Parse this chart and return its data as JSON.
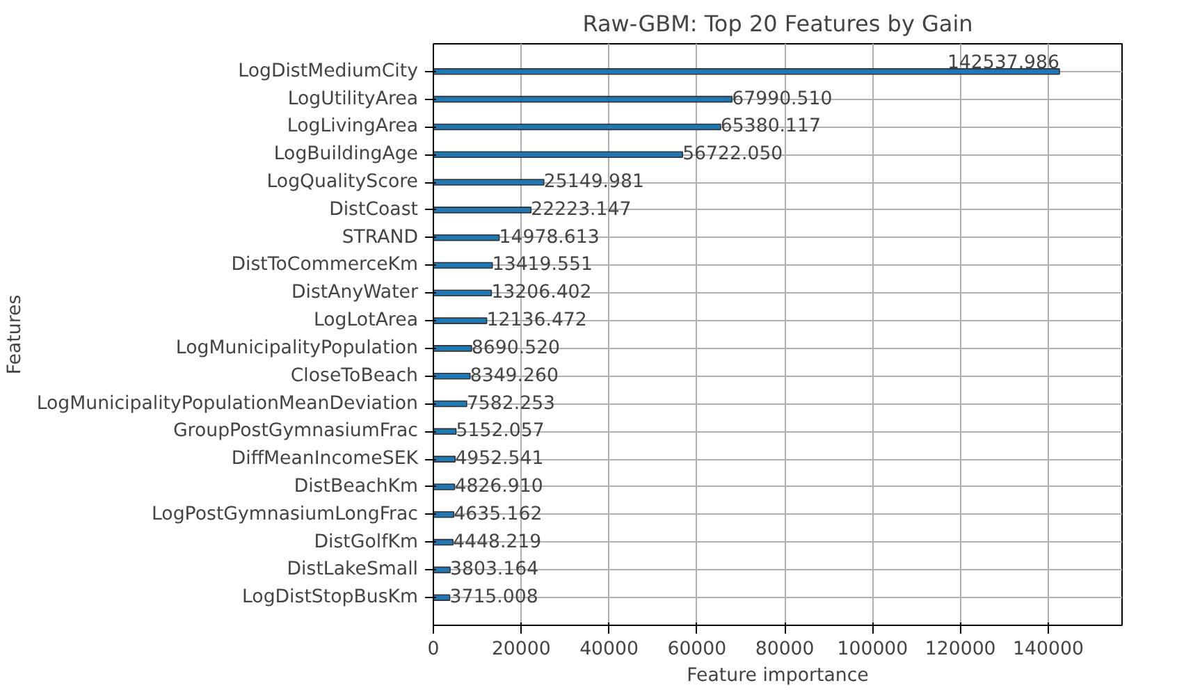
{
  "chart_data": {
    "type": "bar",
    "orientation": "horizontal",
    "title": "Raw-GBM: Top 20 Features by Gain",
    "xlabel": "Feature importance",
    "ylabel": "Features",
    "categories": [
      "LogDistMediumCity",
      "LogUtilityArea",
      "LogLivingArea",
      "LogBuildingAge",
      "LogQualityScore",
      "DistCoast",
      "STRAND",
      "DistToCommerceKm",
      "DistAnyWater",
      "LogLotArea",
      "LogMunicipalityPopulation",
      "CloseToBeach",
      "LogMunicipalityPopulationMeanDeviation",
      "GroupPostGymnasiumFrac",
      "DiffMeanIncomeSEK",
      "DistBeachKm",
      "LogPostGymnasiumLongFrac",
      "DistGolfKm",
      "DistLakeSmall",
      "LogDistStopBusKm"
    ],
    "values": [
      142537.986,
      67990.51,
      65380.117,
      56722.05,
      25149.981,
      22223.147,
      14978.613,
      13419.551,
      13206.402,
      12136.472,
      8690.52,
      8349.26,
      7582.253,
      5152.057,
      4952.541,
      4826.91,
      4635.162,
      4448.219,
      3803.164,
      3715.008
    ],
    "value_labels": [
      "142537.986",
      "67990.510",
      "65380.117",
      "56722.050",
      "25149.981",
      "22223.147",
      "14978.613",
      "13419.551",
      "13206.402",
      "12136.472",
      "8690.520",
      "8349.260",
      "7582.253",
      "5152.057",
      "4952.541",
      "4826.910",
      "4635.162",
      "4448.219",
      "3803.164",
      "3715.008"
    ],
    "color": "#1f77b4",
    "xlim": [
      0,
      156791.8
    ],
    "xticks": [
      0,
      20000,
      40000,
      60000,
      80000,
      100000,
      120000,
      140000
    ],
    "grid": true
  }
}
